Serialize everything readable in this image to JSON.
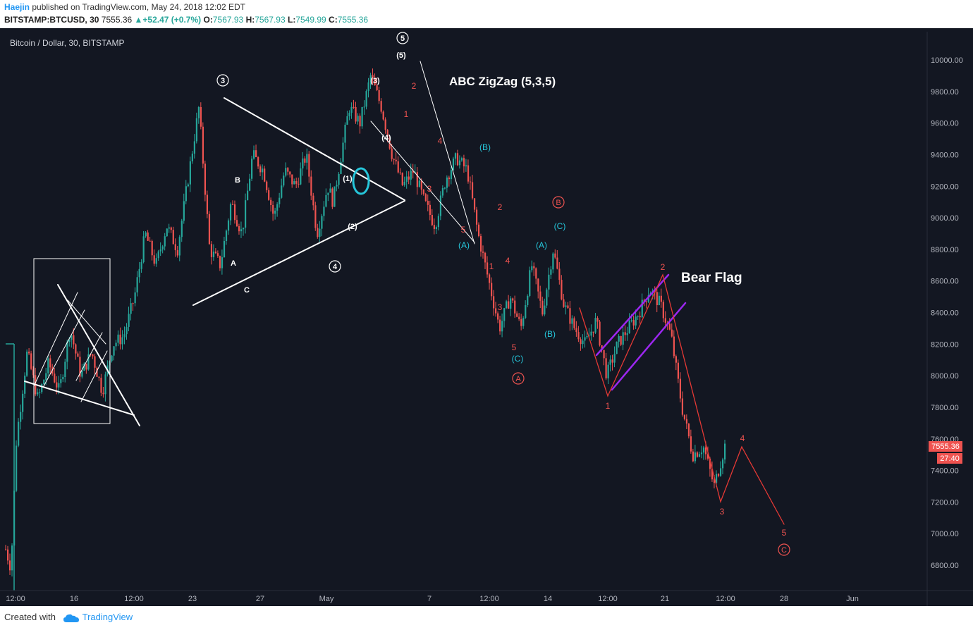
{
  "header": {
    "author": "Haejin",
    "published_text": "published on TradingView.com, May 24, 2018 12:02 EDT",
    "symbol": "BITSTAMP:BTCUSD, 30",
    "price": "7555.36",
    "change": "+52.47 (+0.7%)",
    "o_label": "O:",
    "o": "7567.93",
    "h_label": "H:",
    "h": "7567.93",
    "l_label": "L:",
    "l": "7549.99",
    "c_label": "C:",
    "c": "7555.36"
  },
  "footer": {
    "created_with": "Created with",
    "brand": "TradingView"
  },
  "colors": {
    "background": "#131722",
    "up": "#26a69a",
    "down": "#ef5350",
    "white": "#ffffff",
    "red_label": "#ef5350",
    "cyan": "#26c6da",
    "purple": "#9c27f0",
    "price_tag": "#ef5350"
  },
  "chart_data": {
    "type": "candlestick",
    "title": "Bitcoin / Dollar, 30, BITSTAMP",
    "ylim": [
      6640,
      10100
    ],
    "y_ticks": [
      "10000.00",
      "9800.00",
      "9600.00",
      "9400.00",
      "9200.00",
      "9000.00",
      "8800.00",
      "8600.00",
      "8400.00",
      "8200.00",
      "8000.00",
      "7800.00",
      "7600.00",
      "7400.00",
      "7200.00",
      "7000.00",
      "6800.00"
    ],
    "x_ticks": [
      "12:00",
      "16",
      "12:00",
      "23",
      "27",
      "May",
      "7",
      "12:00",
      "14",
      "12:00",
      "21",
      "12:00",
      "28",
      "Jun"
    ],
    "last_price": "7555.36",
    "countdown": "27:40",
    "price_path": [
      [
        0,
        6900
      ],
      [
        0.5,
        6780
      ],
      [
        1,
        7600
      ],
      [
        2,
        8150
      ],
      [
        3,
        7850
      ],
      [
        4,
        8080
      ],
      [
        5,
        7900
      ],
      [
        6,
        8300
      ],
      [
        7,
        8000
      ],
      [
        8,
        8150
      ],
      [
        9,
        7900
      ],
      [
        10,
        8200
      ],
      [
        11,
        8250
      ],
      [
        12,
        8500
      ],
      [
        13,
        8900
      ],
      [
        14,
        8700
      ],
      [
        15,
        8950
      ],
      [
        16,
        8800
      ],
      [
        17,
        9250
      ],
      [
        18,
        9700
      ],
      [
        19,
        8800
      ],
      [
        20,
        8700
      ],
      [
        21,
        9100
      ],
      [
        22,
        8900
      ],
      [
        23,
        9400
      ],
      [
        24,
        9300
      ],
      [
        25,
        9000
      ],
      [
        26,
        9300
      ],
      [
        27,
        9200
      ],
      [
        28,
        9400
      ],
      [
        29,
        8900
      ],
      [
        30,
        9200
      ],
      [
        30.5,
        9100
      ],
      [
        31,
        9300
      ],
      [
        32,
        9700
      ],
      [
        33,
        9600
      ],
      [
        34,
        9900
      ],
      [
        35,
        9700
      ],
      [
        36,
        9400
      ],
      [
        37,
        9200
      ],
      [
        38,
        9300
      ],
      [
        39,
        9100
      ],
      [
        40,
        8950
      ],
      [
        41,
        9250
      ],
      [
        42,
        9380
      ],
      [
        43,
        9300
      ],
      [
        44,
        8900
      ],
      [
        45,
        8600
      ],
      [
        46,
        8300
      ],
      [
        47,
        8500
      ],
      [
        48,
        8300
      ],
      [
        49,
        8700
      ],
      [
        50,
        8400
      ],
      [
        51,
        8800
      ],
      [
        52,
        8450
      ],
      [
        53,
        8300
      ],
      [
        54,
        8200
      ],
      [
        55,
        8350
      ],
      [
        56,
        8000
      ],
      [
        57,
        8200
      ],
      [
        58,
        8300
      ],
      [
        59,
        8400
      ],
      [
        60,
        8550
      ],
      [
        61,
        8450
      ],
      [
        62,
        8250
      ],
      [
        63,
        7800
      ],
      [
        64,
        7500
      ],
      [
        65,
        7550
      ],
      [
        66,
        7300
      ],
      [
        67,
        7555
      ]
    ],
    "annotations": [
      {
        "text": "ABC ZigZag (5,3,5)",
        "kind": "title"
      },
      {
        "text": "Bear Flag",
        "kind": "title"
      },
      {
        "text": "3",
        "kind": "circle_white"
      },
      {
        "text": "4",
        "kind": "circle_white"
      },
      {
        "text": "5",
        "kind": "circle_white"
      },
      {
        "text": "B",
        "kind": "white"
      },
      {
        "text": "A",
        "kind": "white"
      },
      {
        "text": "C",
        "kind": "white"
      },
      {
        "text": "(1)",
        "kind": "white"
      },
      {
        "text": "(2)",
        "kind": "white"
      },
      {
        "text": "(3)",
        "kind": "white"
      },
      {
        "text": "(4)",
        "kind": "white"
      },
      {
        "text": "(5)",
        "kind": "white"
      },
      {
        "text": "(A)",
        "kind": "cyan"
      },
      {
        "text": "(B)",
        "kind": "cyan"
      },
      {
        "text": "(C)",
        "kind": "cyan"
      },
      {
        "text": "A",
        "kind": "circle_red"
      },
      {
        "text": "B",
        "kind": "circle_red"
      },
      {
        "text": "C",
        "kind": "circle_red"
      },
      {
        "text": "1",
        "kind": "red"
      },
      {
        "text": "2",
        "kind": "red"
      },
      {
        "text": "3",
        "kind": "red"
      },
      {
        "text": "4",
        "kind": "red"
      },
      {
        "text": "5",
        "kind": "red"
      }
    ]
  }
}
